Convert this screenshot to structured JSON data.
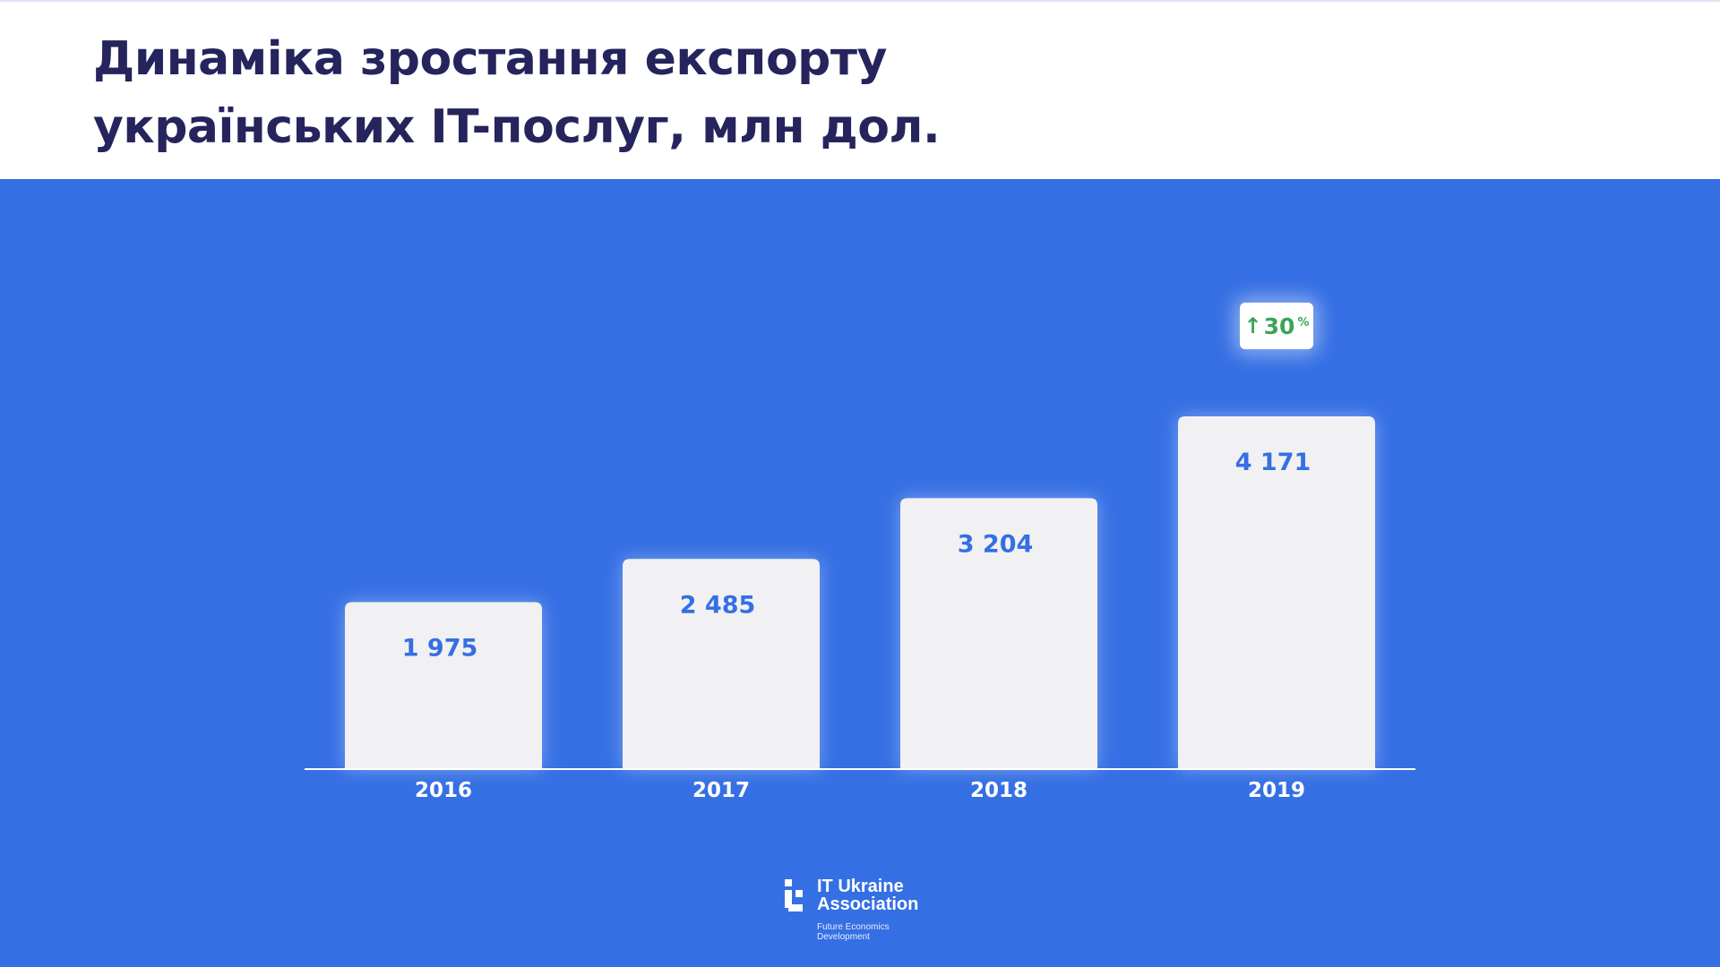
{
  "title": {
    "line1": "Динаміка зростання експорту",
    "line2": "українських IT-послуг, млн дол."
  },
  "chart_data": {
    "type": "bar",
    "categories": [
      "2016",
      "2017",
      "2018",
      "2019"
    ],
    "values": [
      1975,
      2485,
      3204,
      4171
    ],
    "value_labels": [
      "1 975",
      "2 485",
      "3 204",
      "4 171"
    ],
    "title": "Динаміка зростання експорту українських IT-послуг, млн дол.",
    "xlabel": "",
    "ylabel": "",
    "ylim": [
      0,
      4171
    ],
    "grid": false,
    "legend": "none",
    "annotation": {
      "category": "2019",
      "arrow": "↑",
      "value": "30",
      "unit": "%"
    }
  },
  "colors": {
    "background": "#356fe4",
    "bar": "#f1f1f3",
    "value_text": "#356fe4",
    "axis": "#ffffff",
    "title": "#25245c",
    "growth": "#3aa556"
  },
  "logo": {
    "icon": "it-ukraine-association-logo-icon",
    "name_line1": "IT Ukraine",
    "name_line2": "Association",
    "tagline_line1": "Future Economics",
    "tagline_line2": "Development"
  }
}
